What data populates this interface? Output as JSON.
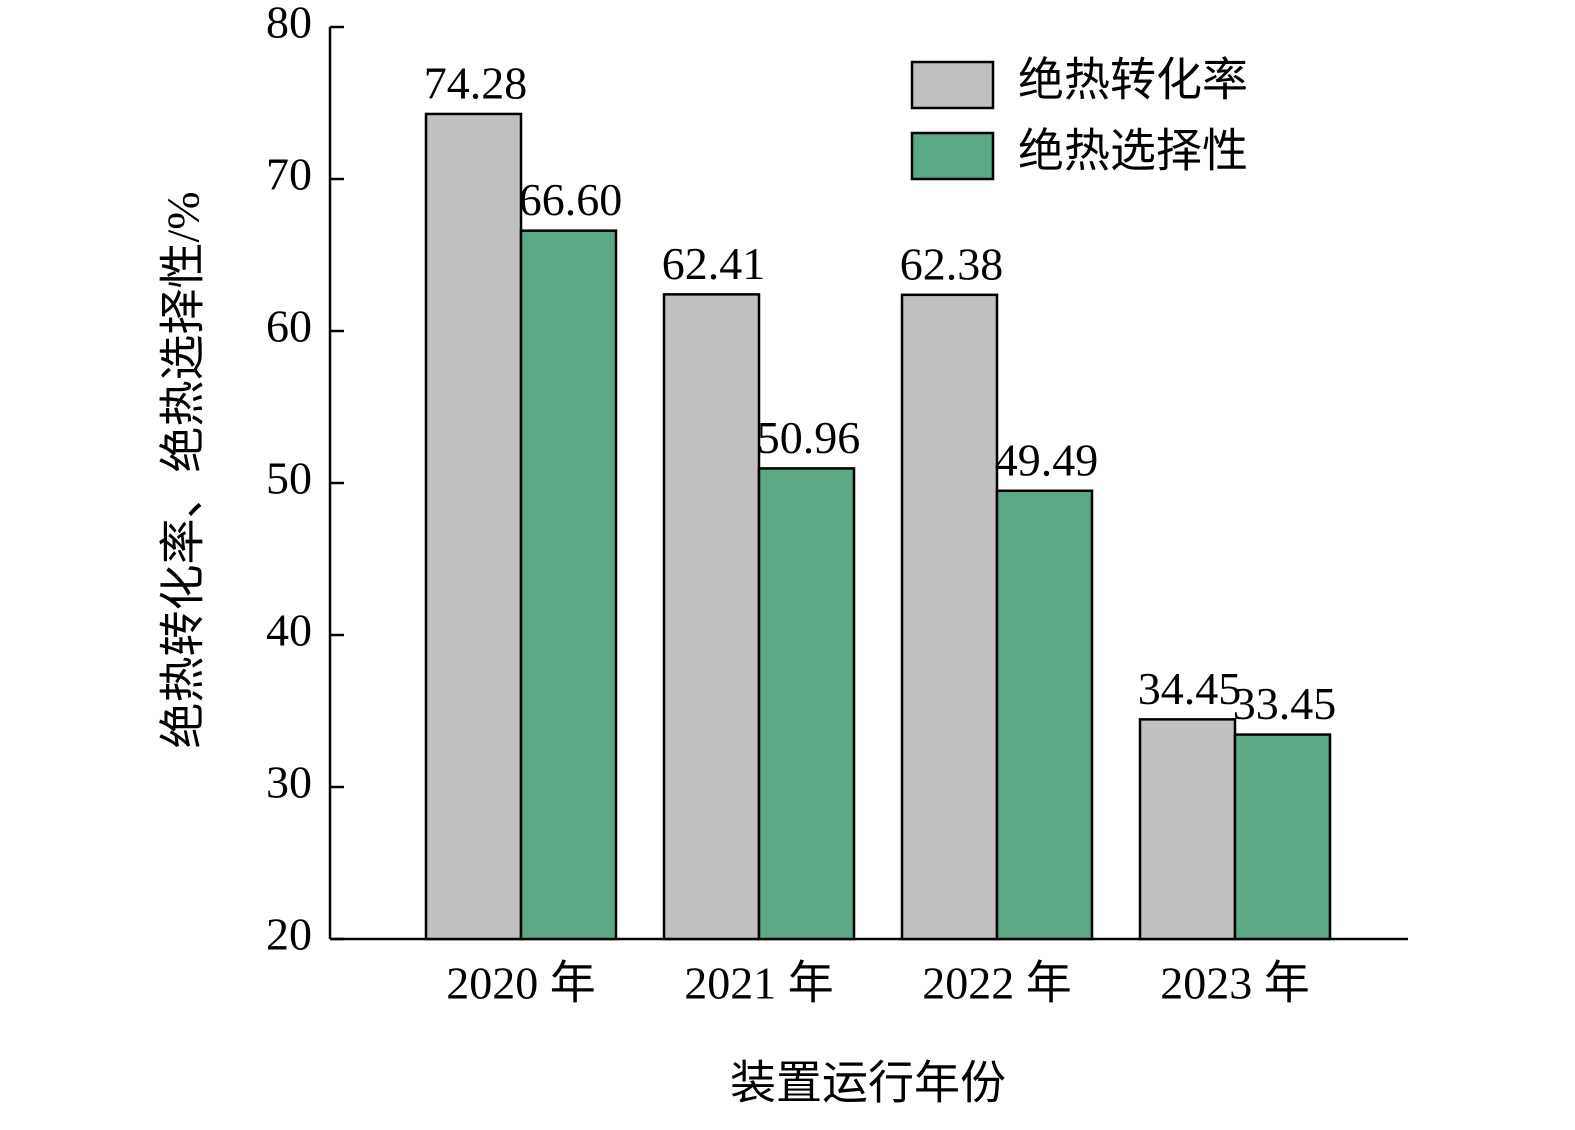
{
  "chart_data": {
    "type": "bar",
    "x_label": "装置运行年份",
    "y_label": "绝热转化率、绝热选择性/%",
    "categories": [
      "2020 年",
      "2021 年",
      "2022 年",
      "2023 年"
    ],
    "series": [
      {
        "name": "绝热转化率",
        "color": "#c0c0c0",
        "values": [
          74.28,
          62.41,
          62.38,
          34.45
        ],
        "value_labels": [
          "74.28",
          "62.41",
          "62.38",
          "34.45"
        ]
      },
      {
        "name": "绝热选择性",
        "color": "#5aa884",
        "values": [
          66.6,
          50.96,
          49.49,
          33.45
        ],
        "value_labels": [
          "66.60",
          "50.96",
          "49.49",
          "33.45"
        ]
      }
    ],
    "ylim": [
      20,
      80
    ],
    "yticks": [
      20,
      30,
      40,
      50,
      60,
      70,
      80
    ],
    "legend": "upper right",
    "grid": false
  }
}
